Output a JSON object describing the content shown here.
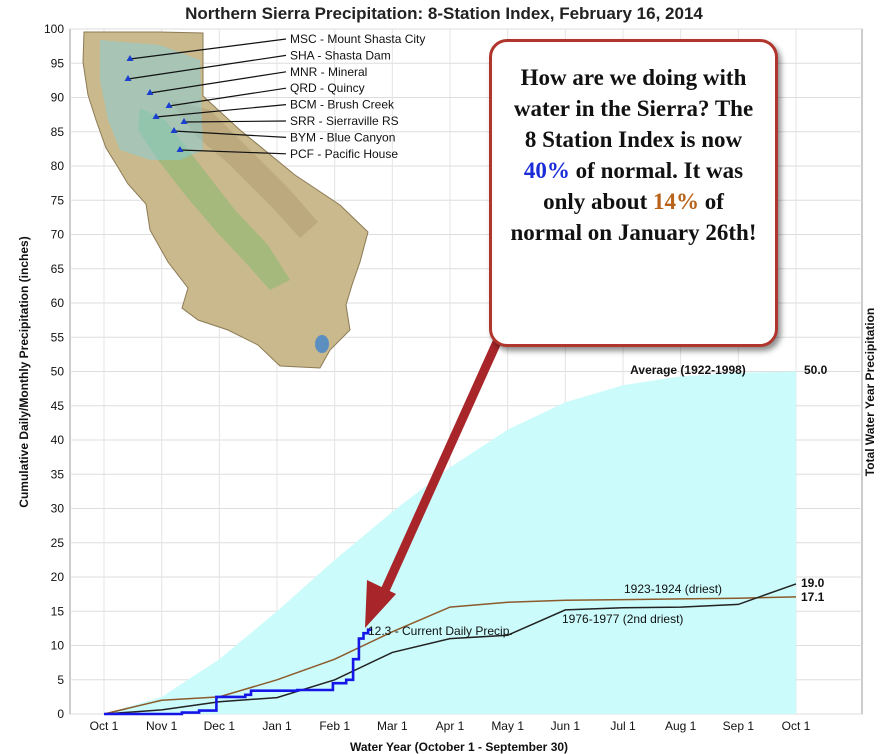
{
  "chart_data": {
    "type": "line",
    "title": "Northern Sierra Precipitation: 8-Station Index, February 16, 2014",
    "xlabel": "Water Year (October 1 - September 30)",
    "ylabel": "Cumulative Daily/Monthly Precipitation (inches)",
    "ylabel_right": "Total Water Year Precipitation",
    "xlim": [
      0,
      12
    ],
    "ylim": [
      0,
      100
    ],
    "x_ticks": [
      "Oct 1",
      "Nov 1",
      "Dec 1",
      "Jan 1",
      "Feb 1",
      "Mar 1",
      "Apr 1",
      "May 1",
      "Jun 1",
      "Jul 1",
      "Aug 1",
      "Sep 1",
      "Oct 1"
    ],
    "y_ticks": [
      0,
      5,
      10,
      15,
      20,
      25,
      30,
      35,
      40,
      45,
      50,
      55,
      60,
      65,
      70,
      75,
      80,
      85,
      90,
      95,
      100
    ],
    "grid": true,
    "series": [
      {
        "name": "Average (1922-1998)",
        "kind": "area",
        "color": "#ccfbfb",
        "label_color": "#29b8e8",
        "end_label": "50.0",
        "points": [
          [
            0,
            0
          ],
          [
            1,
            2.5
          ],
          [
            2,
            8
          ],
          [
            3,
            15
          ],
          [
            4,
            22.5
          ],
          [
            5,
            29.5
          ],
          [
            6,
            36
          ],
          [
            7,
            41.5
          ],
          [
            8,
            45.5
          ],
          [
            9,
            48
          ],
          [
            10,
            49.3
          ],
          [
            11,
            49.8
          ],
          [
            12,
            50
          ]
        ]
      },
      {
        "name": "1923-1924 (driest)",
        "kind": "line",
        "color": "#8b5a2b",
        "end_label": "17.1",
        "points": [
          [
            0,
            0
          ],
          [
            1,
            2
          ],
          [
            2,
            2.5
          ],
          [
            3,
            5
          ],
          [
            4,
            8
          ],
          [
            5,
            12
          ],
          [
            6,
            15.6
          ],
          [
            7,
            16.3
          ],
          [
            8,
            16.6
          ],
          [
            9,
            16.7
          ],
          [
            10,
            16.8
          ],
          [
            11,
            16.9
          ],
          [
            12,
            17.1
          ]
        ]
      },
      {
        "name": "1976-1977 (2nd driest)",
        "kind": "line",
        "color": "#222222",
        "end_label": "19.0",
        "points": [
          [
            0,
            0
          ],
          [
            1,
            0.6
          ],
          [
            2,
            1.8
          ],
          [
            3,
            2.4
          ],
          [
            4,
            5
          ],
          [
            5,
            9
          ],
          [
            6,
            11
          ],
          [
            7,
            11.5
          ],
          [
            8,
            15.2
          ],
          [
            9,
            15.5
          ],
          [
            10,
            15.6
          ],
          [
            11,
            16
          ],
          [
            12,
            19
          ]
        ]
      },
      {
        "name": "Current Daily Precip.",
        "kind": "step",
        "color": "#1515e8",
        "end_label": "12.3",
        "points": [
          [
            0,
            0
          ],
          [
            1.35,
            0
          ],
          [
            1.35,
            0.2
          ],
          [
            1.65,
            0.2
          ],
          [
            1.65,
            0.5
          ],
          [
            1.95,
            0.5
          ],
          [
            1.95,
            2.5
          ],
          [
            2.45,
            2.5
          ],
          [
            2.45,
            2.8
          ],
          [
            2.55,
            2.8
          ],
          [
            2.55,
            3.4
          ],
          [
            3.35,
            3.4
          ],
          [
            3.35,
            3.5
          ],
          [
            3.97,
            3.5
          ],
          [
            3.97,
            4.5
          ],
          [
            4.2,
            4.5
          ],
          [
            4.2,
            5.0
          ],
          [
            4.32,
            5.0
          ],
          [
            4.32,
            8.0
          ],
          [
            4.42,
            8.0
          ],
          [
            4.42,
            11.0
          ],
          [
            4.5,
            11.0
          ],
          [
            4.5,
            11.8
          ],
          [
            4.58,
            11.8
          ],
          [
            4.58,
            12.3
          ],
          [
            4.65,
            12.3
          ]
        ]
      }
    ],
    "annotations": {
      "current_label": "12.3 -  Current Daily Precip.",
      "driest_label": "1923-1924 (driest)",
      "second_driest_label": "1976-1977 (2nd driest)"
    },
    "stations": [
      {
        "code_label": "MSC - Mount Shasta City"
      },
      {
        "code_label": "SHA - Shasta Dam"
      },
      {
        "code_label": "MNR - Mineral"
      },
      {
        "code_label": "QRD - Quincy"
      },
      {
        "code_label": "BCM - Brush Creek"
      },
      {
        "code_label": "SRR - Sierraville RS"
      },
      {
        "code_label": "BYM - Blue Canyon"
      },
      {
        "code_label": "PCF - Pacific House"
      }
    ]
  },
  "callout": {
    "line1": "How are we doing with water in the Sierra? The 8 Station Index is now",
    "pct_now": "40%",
    "line2": "of normal.  It was only about",
    "pct_then": "14%",
    "line3": "of normal on January 26th!"
  }
}
